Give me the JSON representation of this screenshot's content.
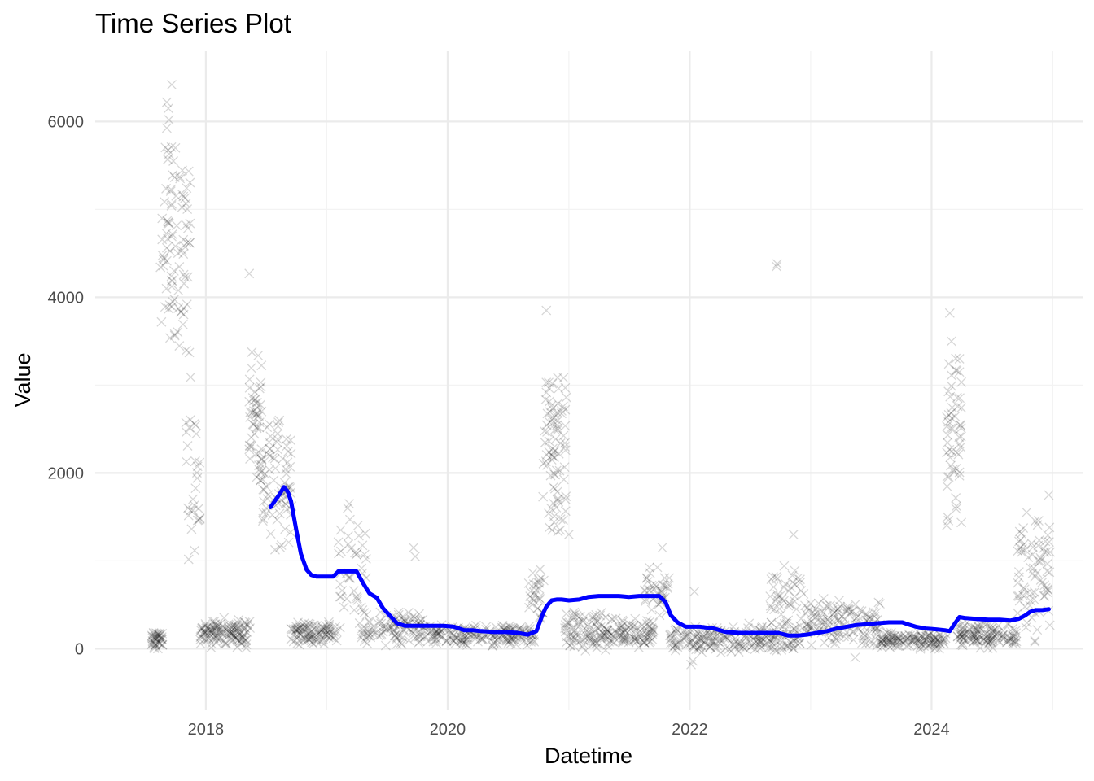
{
  "chart_data": {
    "type": "scatter",
    "title": "Time Series Plot",
    "xlabel": "Datetime",
    "ylabel": "Value",
    "x_type": "date",
    "xlim": [
      "2017-02-01",
      "2025-04-01"
    ],
    "ylim": [
      -700,
      6800
    ],
    "x_ticks": [
      {
        "value": "2018-01-01",
        "label": "2018"
      },
      {
        "value": "2020-01-01",
        "label": "2020"
      },
      {
        "value": "2022-01-01",
        "label": "2022"
      },
      {
        "value": "2024-01-01",
        "label": "2024"
      }
    ],
    "x_minor_ticks": [
      "2019-01-01",
      "2021-01-01",
      "2023-01-01",
      "2025-01-01"
    ],
    "y_ticks": [
      {
        "value": 0,
        "label": "0"
      },
      {
        "value": 2000,
        "label": "2000"
      },
      {
        "value": 4000,
        "label": "4000"
      },
      {
        "value": 6000,
        "label": "6000"
      }
    ],
    "y_minor_ticks": [
      1000,
      3000,
      5000
    ],
    "grid": true,
    "series": [
      {
        "type": "scatter",
        "marker": "x",
        "color": "#000000",
        "opacity": 0.16,
        "clusters": [
          {
            "start": "2017-07-20",
            "end": "2017-08-25",
            "base": 100,
            "spread": 120,
            "n": 40
          },
          {
            "start": "2017-08-15",
            "end": "2017-11-15",
            "base": 4500,
            "spread": 1500,
            "n": 90
          },
          {
            "start": "2017-11-01",
            "end": "2017-12-15",
            "base": 2000,
            "spread": 1200,
            "n": 30
          },
          {
            "start": "2017-12-15",
            "end": "2018-05-15",
            "base": 180,
            "spread": 180,
            "n": 130
          },
          {
            "start": "2018-05-10",
            "end": "2018-06-20",
            "base": 2600,
            "spread": 900,
            "n": 45
          },
          {
            "start": "2018-06-15",
            "end": "2018-09-20",
            "base": 1900,
            "spread": 900,
            "n": 85
          },
          {
            "start": "2018-09-15",
            "end": "2019-02-01",
            "base": 180,
            "spread": 150,
            "n": 100
          },
          {
            "start": "2019-02-01",
            "end": "2019-05-01",
            "base": 900,
            "spread": 700,
            "n": 40
          },
          {
            "start": "2019-04-15",
            "end": "2019-11-01",
            "base": 230,
            "spread": 220,
            "n": 110
          },
          {
            "start": "2019-11-01",
            "end": "2020-09-20",
            "base": 150,
            "spread": 130,
            "n": 190
          },
          {
            "start": "2020-09-01",
            "end": "2020-10-20",
            "base": 600,
            "spread": 350,
            "n": 30
          },
          {
            "start": "2020-10-15",
            "end": "2020-12-25",
            "base": 2200,
            "spread": 1100,
            "n": 85
          },
          {
            "start": "2020-12-20",
            "end": "2021-06-01",
            "base": 200,
            "spread": 260,
            "n": 110
          },
          {
            "start": "2021-06-01",
            "end": "2021-09-15",
            "base": 180,
            "spread": 200,
            "n": 75
          },
          {
            "start": "2021-08-15",
            "end": "2021-11-01",
            "base": 650,
            "spread": 300,
            "n": 40
          },
          {
            "start": "2021-11-01",
            "end": "2022-12-01",
            "base": 120,
            "spread": 180,
            "n": 220
          },
          {
            "start": "2022-09-01",
            "end": "2022-12-15",
            "base": 600,
            "spread": 450,
            "n": 45
          },
          {
            "start": "2022-12-15",
            "end": "2023-08-01",
            "base": 300,
            "spread": 300,
            "n": 140
          },
          {
            "start": "2023-08-01",
            "end": "2024-02-15",
            "base": 100,
            "spread": 110,
            "n": 130
          },
          {
            "start": "2024-02-15",
            "end": "2024-04-01",
            "base": 2400,
            "spread": 1300,
            "n": 55
          },
          {
            "start": "2024-03-20",
            "end": "2024-09-15",
            "base": 150,
            "spread": 160,
            "n": 130
          },
          {
            "start": "2024-09-15",
            "end": "2024-12-25",
            "base": 800,
            "spread": 800,
            "n": 75
          }
        ],
        "points": [
          [
            "2022-09-20",
            4350
          ],
          [
            "2022-09-22",
            4380
          ],
          [
            "2018-05-12",
            4270
          ],
          [
            "2020-10-25",
            3850
          ],
          [
            "2017-09-20",
            6420
          ],
          [
            "2017-09-05",
            6220
          ],
          [
            "2017-09-10",
            6150
          ],
          [
            "2017-09-12",
            6020
          ],
          [
            "2017-10-01",
            5700
          ],
          [
            "2017-09-25",
            5550
          ],
          [
            "2017-10-15",
            5350
          ],
          [
            "2024-02-25",
            3820
          ],
          [
            "2024-03-01",
            3500
          ],
          [
            "2024-03-25",
            3150
          ],
          [
            "2018-06-05",
            2800
          ],
          [
            "2018-06-10",
            2650
          ],
          [
            "2019-03-05",
            1600
          ],
          [
            "2019-03-10",
            1650
          ],
          [
            "2024-12-20",
            1750
          ],
          [
            "2024-12-22",
            1380
          ],
          [
            "2024-12-24",
            1100
          ],
          [
            "2020-12-20",
            2300
          ],
          [
            "2021-01-01",
            1300
          ],
          [
            "2018-12-01",
            80
          ],
          [
            "2022-01-05",
            -180
          ],
          [
            "2022-01-10",
            -140
          ],
          [
            "2023-05-15",
            -100
          ],
          [
            "2022-01-15",
            650
          ],
          [
            "2019-09-20",
            1150
          ],
          [
            "2019-09-25",
            1050
          ],
          [
            "2021-10-10",
            1150
          ],
          [
            "2022-11-10",
            1300
          ]
        ]
      },
      {
        "type": "line",
        "name": "",
        "color": "#0000ff",
        "x": [
          "2018-07-15",
          "2018-07-28",
          "2018-08-10",
          "2018-08-25",
          "2018-09-05",
          "2018-09-15",
          "2018-10-01",
          "2018-10-15",
          "2018-11-01",
          "2018-11-15",
          "2018-12-01",
          "2018-12-20",
          "2019-01-20",
          "2019-02-05",
          "2019-02-20",
          "2019-03-10",
          "2019-04-01",
          "2019-04-20",
          "2019-05-10",
          "2019-06-01",
          "2019-06-20",
          "2019-07-10",
          "2019-08-01",
          "2019-08-25",
          "2019-09-15",
          "2019-10-05",
          "2019-10-20",
          "2019-11-20",
          "2019-12-20",
          "2020-01-20",
          "2020-02-20",
          "2020-03-15",
          "2020-04-10",
          "2020-05-20",
          "2020-06-25",
          "2020-07-30",
          "2020-08-30",
          "2020-09-25",
          "2020-10-15",
          "2020-10-25",
          "2020-11-10",
          "2020-11-25",
          "2020-12-10",
          "2021-01-01",
          "2021-02-01",
          "2021-03-01",
          "2021-04-01",
          "2021-05-01",
          "2021-06-01",
          "2021-07-01",
          "2021-08-01",
          "2021-09-01",
          "2021-10-01",
          "2021-10-20",
          "2021-11-05",
          "2021-11-25",
          "2021-12-20",
          "2022-02-01",
          "2022-03-15",
          "2022-04-20",
          "2022-06-01",
          "2022-07-15",
          "2022-08-25",
          "2022-09-25",
          "2022-10-25",
          "2022-11-25",
          "2022-12-20",
          "2023-01-20",
          "2023-02-20",
          "2023-03-20",
          "2023-04-20",
          "2023-05-20",
          "2023-06-20",
          "2023-07-20",
          "2023-08-25",
          "2023-09-25",
          "2023-10-05",
          "2023-10-20",
          "2023-11-15",
          "2023-12-15",
          "2024-01-15",
          "2024-02-10",
          "2024-02-25",
          "2024-03-10",
          "2024-03-25",
          "2024-04-10",
          "2024-05-15",
          "2024-06-20",
          "2024-07-25",
          "2024-08-25",
          "2024-09-20",
          "2024-10-10",
          "2024-10-25",
          "2024-11-10",
          "2024-12-01",
          "2024-12-20"
        ],
        "y": [
          1610,
          1680,
          1750,
          1840,
          1790,
          1680,
          1350,
          1080,
          900,
          840,
          820,
          820,
          820,
          880,
          880,
          880,
          880,
          750,
          630,
          580,
          460,
          380,
          290,
          260,
          260,
          260,
          260,
          260,
          260,
          250,
          210,
          210,
          200,
          190,
          190,
          180,
          160,
          200,
          400,
          480,
          550,
          560,
          560,
          550,
          560,
          590,
          600,
          600,
          600,
          590,
          600,
          600,
          600,
          530,
          380,
          300,
          250,
          250,
          230,
          190,
          180,
          180,
          180,
          180,
          150,
          150,
          160,
          180,
          200,
          230,
          250,
          270,
          280,
          290,
          300,
          300,
          300,
          280,
          250,
          230,
          220,
          210,
          200,
          280,
          360,
          350,
          340,
          330,
          330,
          320,
          340,
          380,
          420,
          440,
          440,
          450
        ]
      }
    ]
  }
}
